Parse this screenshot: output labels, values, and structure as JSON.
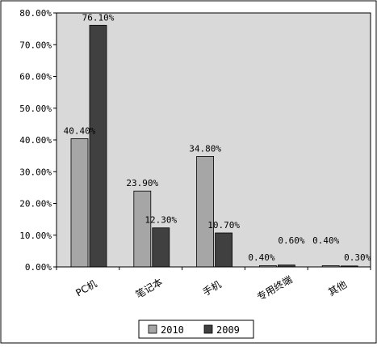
{
  "chart_data": {
    "type": "bar",
    "categories": [
      "PC机",
      "笔记本",
      "手机",
      "专用终端",
      "其他"
    ],
    "series": [
      {
        "name": "2010",
        "values": [
          40.4,
          23.9,
          34.8,
          0.4,
          0.4
        ],
        "labels": [
          "40.40%",
          "23.90%",
          "34.80%",
          "0.40%",
          "0.40%"
        ],
        "color": "#a6a6a6"
      },
      {
        "name": "2009",
        "values": [
          76.1,
          12.3,
          10.7,
          0.6,
          0.3
        ],
        "labels": [
          "76.10%",
          "12.30%",
          "10.70%",
          "0.60%",
          "0.30%"
        ],
        "color": "#404040"
      }
    ],
    "yticks": [
      "0.00%",
      "10.00%",
      "20.00%",
      "30.00%",
      "40.00%",
      "50.00%",
      "60.00%",
      "70.00%",
      "80.00%"
    ],
    "ylim": [
      0,
      80
    ],
    "grid": false,
    "plot_background": "#d9d9d9",
    "legend_position": "bottom"
  }
}
